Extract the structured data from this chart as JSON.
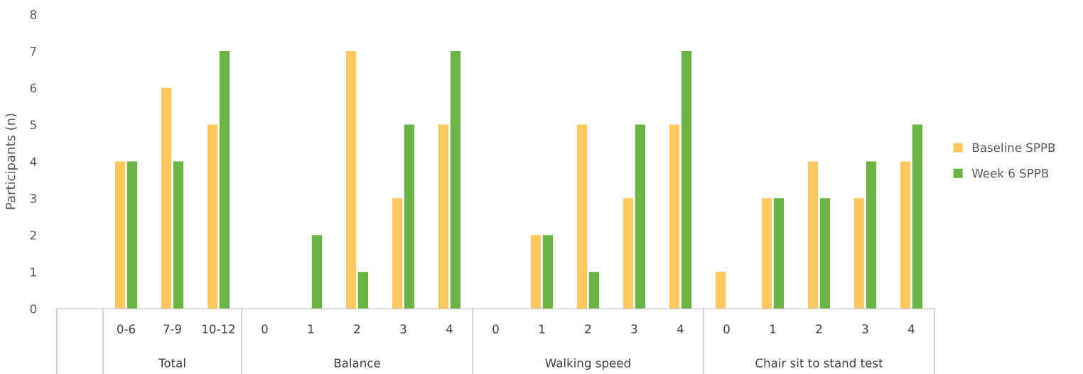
{
  "chart_data": {
    "type": "bar",
    "ylabel": "Participants (n)",
    "categories": [
      null,
      "0-6",
      "7-9",
      "10-12",
      "0",
      "1",
      "2",
      "3",
      "4",
      "0",
      "1",
      "2",
      "3",
      "4",
      "0",
      "1",
      "2",
      "3",
      "4"
    ],
    "series": [
      {
        "name": "Baseline SPPB",
        "color": "#ffc75f",
        "values": [
          null,
          4,
          6,
          5,
          0,
          0,
          7,
          3,
          5,
          0,
          2,
          5,
          3,
          5,
          1,
          3,
          4,
          3,
          4
        ]
      },
      {
        "name": "Week 6 SPPB",
        "color": "#6ab446",
        "values": [
          null,
          4,
          4,
          7,
          0,
          2,
          1,
          5,
          7,
          0,
          2,
          1,
          5,
          7,
          0,
          3,
          3,
          4,
          5
        ]
      }
    ],
    "annotations": [
      "Total",
      "Balance",
      "Walking speed",
      "Chair sit to stand test"
    ],
    "ylim": [
      0,
      8
    ],
    "yticks": [
      0,
      1,
      2,
      3,
      4,
      5,
      6,
      7,
      8
    ],
    "grid": false,
    "legend": "right"
  }
}
